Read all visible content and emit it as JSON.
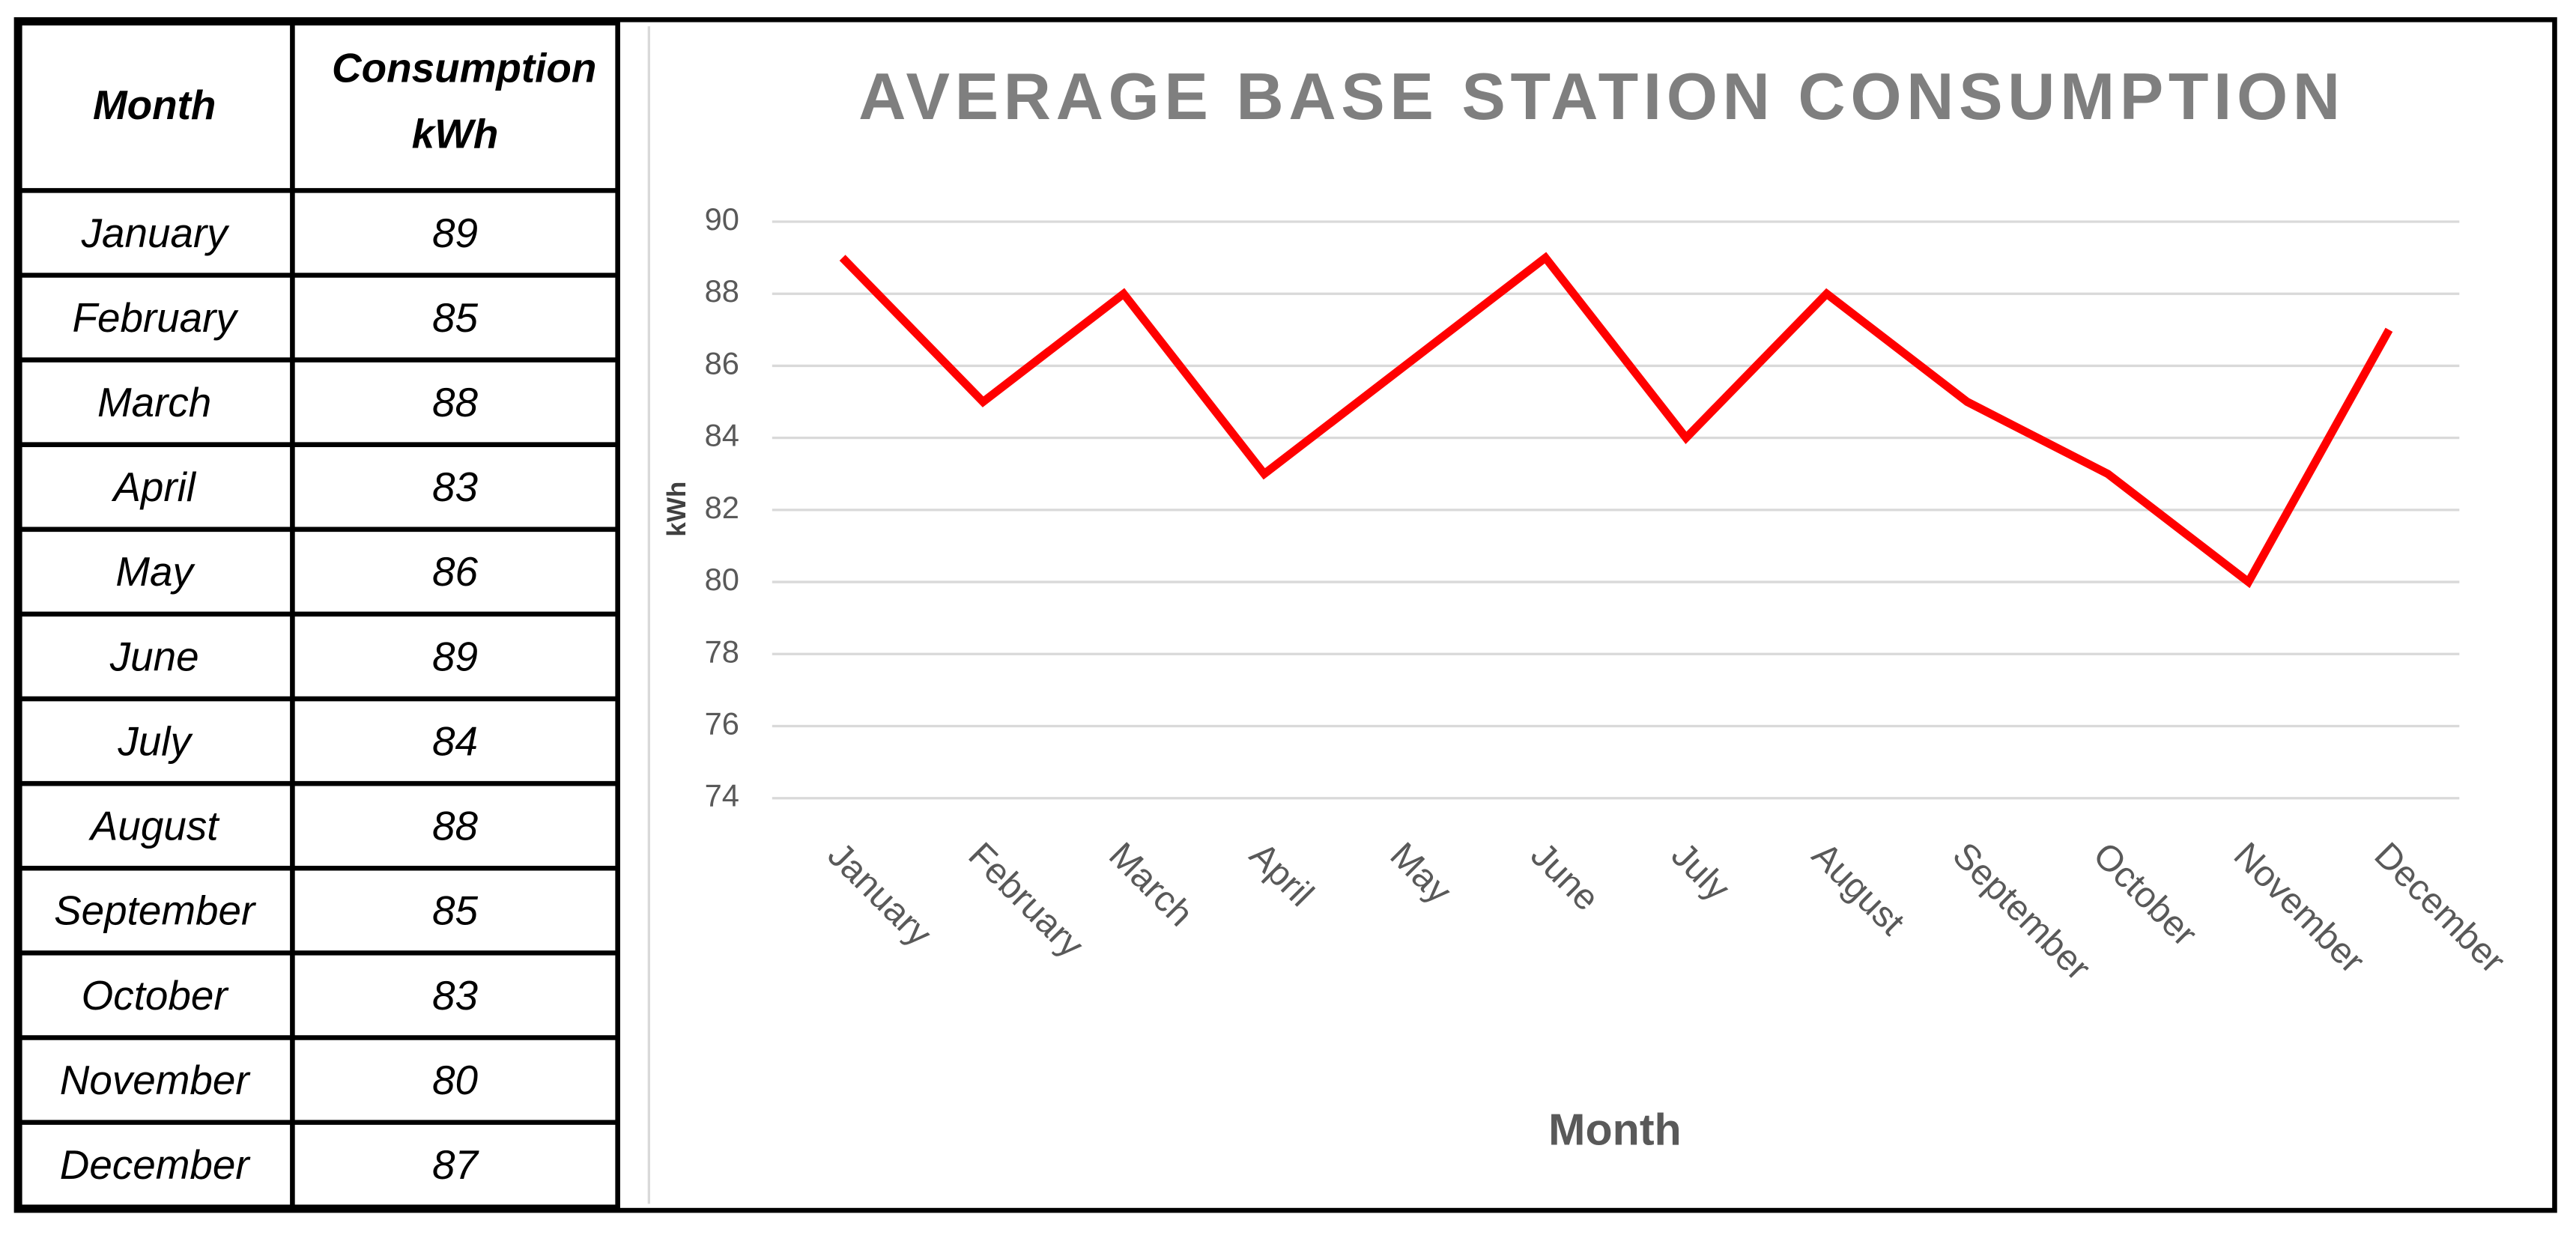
{
  "table": {
    "header": [
      "Month",
      "Consumption kWh"
    ]
  },
  "chart_data": {
    "type": "line",
    "title": "AVERAGE BASE STATION CONSUMPTION",
    "x_label": "Month",
    "y_label": "kWh",
    "categories": [
      "January",
      "February",
      "March",
      "April",
      "May",
      "June",
      "July",
      "August",
      "September",
      "October",
      "November",
      "December"
    ],
    "values": [
      89,
      85,
      88,
      83,
      86,
      89,
      84,
      88,
      85,
      83,
      80,
      87
    ],
    "color": "#ff0000",
    "ylim": [
      74,
      90
    ],
    "yticks": [
      74,
      76,
      78,
      80,
      82,
      84,
      86,
      88,
      90
    ],
    "grid": true
  }
}
